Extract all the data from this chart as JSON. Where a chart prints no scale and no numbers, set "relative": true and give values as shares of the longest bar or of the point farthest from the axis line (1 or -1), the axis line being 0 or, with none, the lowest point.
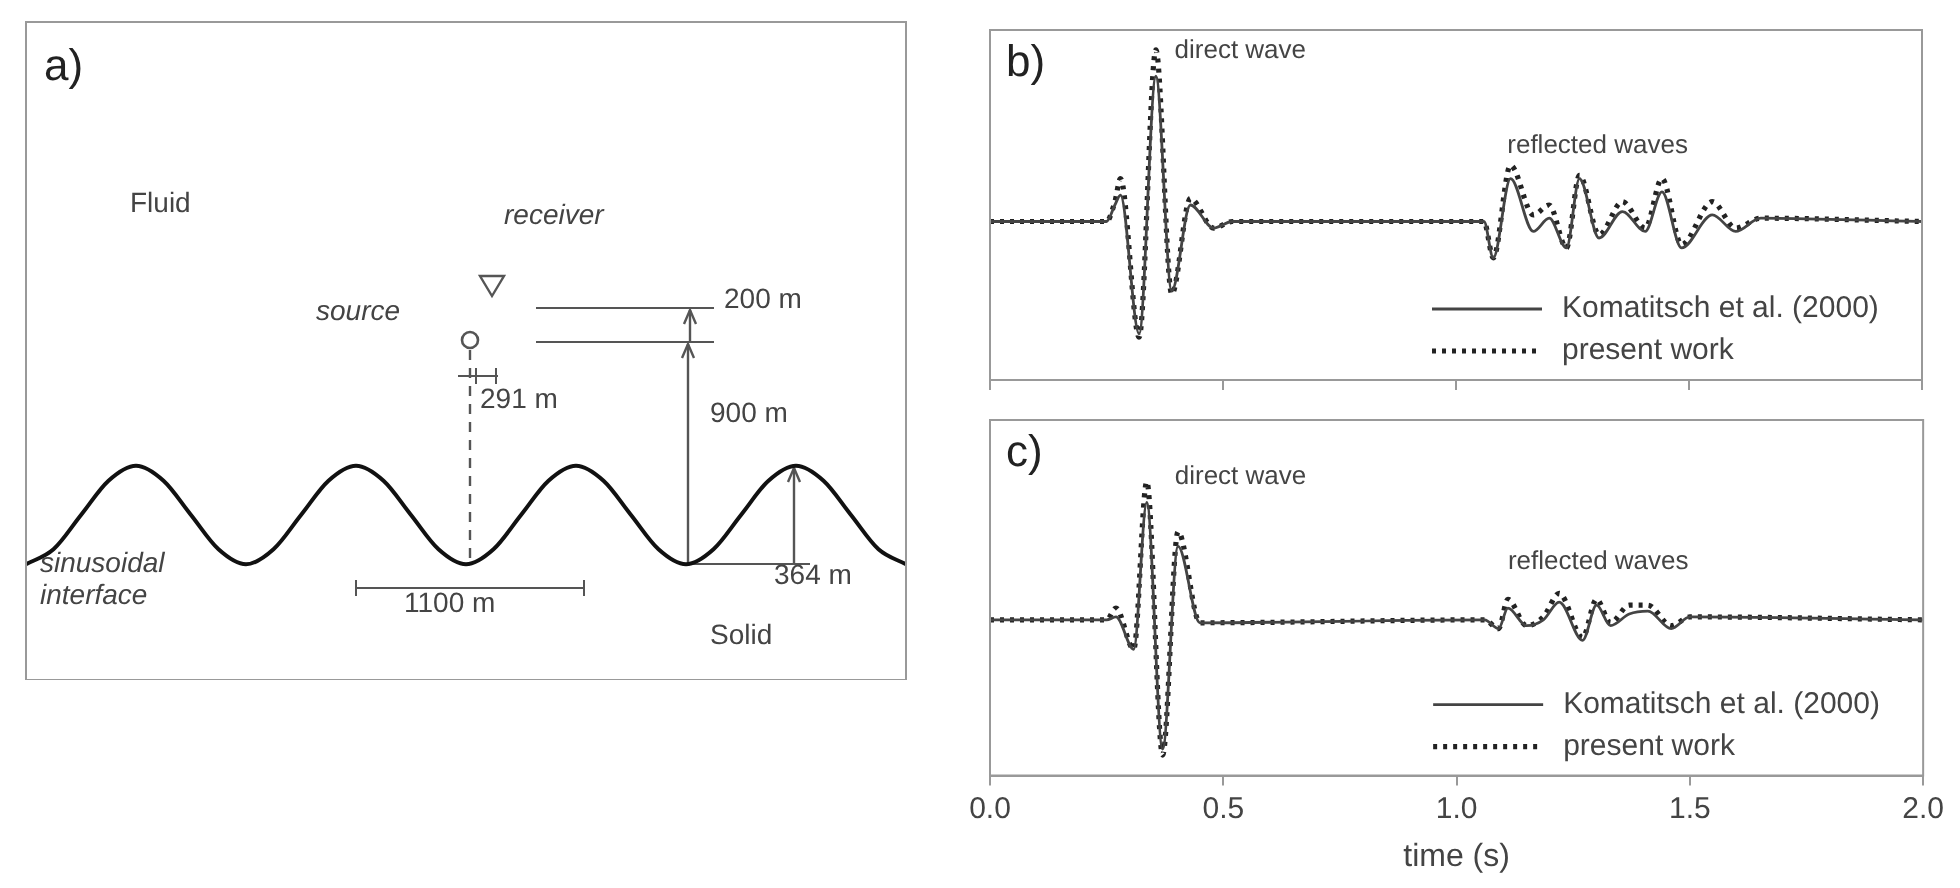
{
  "chart_data": [
    {
      "type": "line",
      "title": "a)",
      "relative": true,
      "categories": [
        null,
        null,
        null,
        null,
        null,
        null,
        null,
        null,
        null,
        null,
        null,
        null,
        null,
        null,
        null,
        null,
        null,
        null,
        null,
        null,
        null,
        null,
        null,
        null,
        null,
        null,
        null,
        null,
        null,
        null,
        null,
        null,
        null
      ],
      "series": [
        {
          "color": "#111111",
          "values": [
            0.54,
            0.61,
            0.77,
            0.93,
            1,
            0.93,
            0.77,
            0.61,
            0.54,
            0.61,
            0.77,
            0.93,
            1,
            0.93,
            0.77,
            0.61,
            0.54,
            0.61,
            0.77,
            0.93,
            1,
            0.93,
            0.77,
            0.61,
            0.54,
            0.61,
            0.77,
            0.93,
            1,
            0.93,
            0.77,
            0.61,
            0.54
          ]
        }
      ],
      "annotations": [
        "Fluid",
        "receiver",
        "source",
        "200 m",
        "291 m",
        "900 m",
        "364 m",
        "1100 m",
        "sinusoidal interface",
        "Solid"
      ]
    },
    {
      "type": "line",
      "title": "b)",
      "relative": true,
      "xlim": [
        0,
        2
      ],
      "xticks": [
        0,
        0.5,
        1,
        1.5,
        2
      ],
      "tick_labels": false,
      "grid": false,
      "legend": "bottom right",
      "x": [
        0,
        0.25,
        0.268,
        0.28,
        0.32,
        0.356,
        0.39,
        0.43,
        0.48,
        0.52,
        1.06,
        1.08,
        1.117,
        1.166,
        1.2,
        1.237,
        1.265,
        1.307,
        1.357,
        1.406,
        1.442,
        1.484,
        1.55,
        1.6,
        1.654,
        2
      ],
      "series": [
        {
          "name": "Komatitsch et al. (2000)",
          "color": "#444444",
          "line_style": "solid",
          "values": [
            0.48,
            0.48,
            0.53,
            0.56,
            0.14,
            0.92,
            0.27,
            0.53,
            0.46,
            0.48,
            0.48,
            0.37,
            0.61,
            0.45,
            0.49,
            0.4,
            0.61,
            0.43,
            0.51,
            0.45,
            0.57,
            0.4,
            0.5,
            0.45,
            0.49,
            0.48
          ]
        },
        {
          "name": "present work",
          "color": "#222222",
          "line_style": "dotted",
          "values": [
            0.48,
            0.48,
            0.54,
            0.61,
            0.13,
            1,
            0.26,
            0.55,
            0.46,
            0.48,
            0.48,
            0.37,
            0.65,
            0.5,
            0.53,
            0.4,
            0.62,
            0.44,
            0.54,
            0.46,
            0.61,
            0.41,
            0.54,
            0.46,
            0.49,
            0.48
          ]
        }
      ],
      "annotations": [
        "direct wave",
        "reflected waves"
      ]
    },
    {
      "type": "line",
      "title": "c)",
      "relative": true,
      "xlim": [
        0,
        2
      ],
      "xticks": [
        {
          "value": 0,
          "label": "0.0"
        },
        0.5,
        {
          "value": 1,
          "label": "1.0"
        },
        1.5,
        {
          "value": 2,
          "label": "2.0"
        }
      ],
      "xlabel": "time (s)",
      "grid": false,
      "legend": "bottom right",
      "x": [
        0,
        0.25,
        0.27,
        0.308,
        0.336,
        0.37,
        0.403,
        0.45,
        1.06,
        1.09,
        1.11,
        1.15,
        1.186,
        1.22,
        1.27,
        1.3,
        1.33,
        1.37,
        1.41,
        1.46,
        1.5,
        2
      ],
      "series": [
        {
          "name": "Komatitsch et al. (2000)",
          "color": "#444444",
          "line_style": "solid",
          "values": [
            0.53,
            0.53,
            0.54,
            0.43,
            0.93,
            0.09,
            0.78,
            0.52,
            0.53,
            0.5,
            0.57,
            0.51,
            0.53,
            0.59,
            0.46,
            0.58,
            0.51,
            0.55,
            0.56,
            0.5,
            0.54,
            0.53
          ]
        },
        {
          "name": "present work",
          "color": "#222222",
          "line_style": "dotted",
          "values": [
            0.53,
            0.53,
            0.57,
            0.43,
            1,
            0.07,
            0.83,
            0.52,
            0.53,
            0.5,
            0.6,
            0.51,
            0.54,
            0.62,
            0.47,
            0.6,
            0.52,
            0.58,
            0.58,
            0.51,
            0.54,
            0.53
          ]
        }
      ],
      "annotations": [
        "direct wave",
        "reflected waves"
      ]
    }
  ]
}
